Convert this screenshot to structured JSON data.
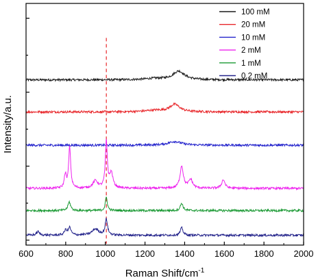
{
  "chart_data": {
    "type": "line",
    "title": "",
    "xlabel": "Raman Shift/cm",
    "xlabel_superscript": "-1",
    "ylabel": "Intensity/a.u.",
    "xlim": [
      600,
      2000
    ],
    "xticks": [
      "600",
      "800",
      "1000",
      "1200",
      "1400",
      "1600",
      "1800",
      "2000"
    ],
    "y_ticks_unlabeled": true,
    "grid": false,
    "legend_position": "top-right",
    "reference_line": {
      "x": 1005,
      "style": "dashed",
      "color": "#e8262a"
    },
    "series": [
      {
        "name": "100 mM",
        "color": "#1a1a1a",
        "offset": 6.5,
        "peaks": [
          [
            1250,
            0.05,
            60
          ],
          [
            1370,
            0.35,
            35
          ]
        ]
      },
      {
        "name": "20 mM",
        "color": "#e8262a",
        "offset": 5.2,
        "peaks": [
          [
            1250,
            0.06,
            60
          ],
          [
            1350,
            0.3,
            30
          ]
        ]
      },
      {
        "name": "10 mM",
        "color": "#2222cc",
        "offset": 3.85,
        "peaks": [
          [
            1350,
            0.15,
            40
          ]
        ]
      },
      {
        "name": "2 mM",
        "color": "#ee22ee",
        "offset": 2.1,
        "peaks": [
          [
            798,
            0.55,
            6
          ],
          [
            820,
            1.7,
            6
          ],
          [
            950,
            0.3,
            15
          ],
          [
            1005,
            1.9,
            6
          ],
          [
            1030,
            0.6,
            10
          ],
          [
            1385,
            0.9,
            10
          ],
          [
            1430,
            0.35,
            12
          ],
          [
            1595,
            0.35,
            10
          ]
        ]
      },
      {
        "name": "1 mM",
        "color": "#1a9933",
        "offset": 1.2,
        "peaks": [
          [
            818,
            0.35,
            8
          ],
          [
            1005,
            0.55,
            6
          ],
          [
            1385,
            0.3,
            8
          ]
        ]
      },
      {
        "name": "0.2 mM",
        "color": "#22228a",
        "offset": 0.2,
        "peaks": [
          [
            660,
            0.15,
            8
          ],
          [
            800,
            0.2,
            8
          ],
          [
            820,
            0.3,
            8
          ],
          [
            950,
            0.25,
            20
          ],
          [
            1005,
            0.65,
            7
          ],
          [
            1385,
            0.3,
            8
          ]
        ]
      }
    ]
  }
}
